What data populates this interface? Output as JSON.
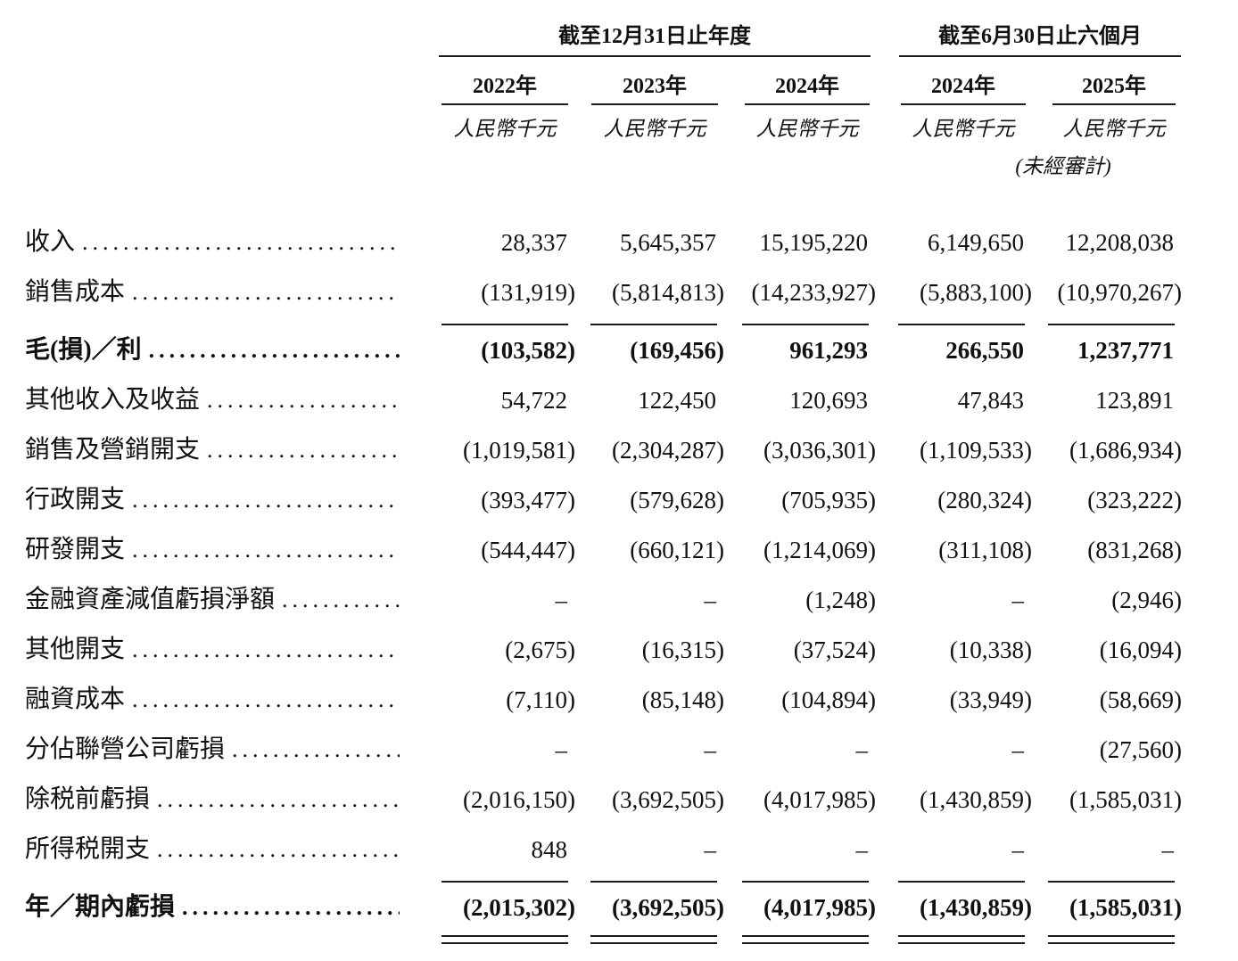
{
  "colors": {
    "text": "#111111",
    "rule": "#1a1a1a",
    "background": "#ffffff"
  },
  "table": {
    "period_groups": [
      {
        "title": "截至12月31日止年度",
        "col_start": 0,
        "col_count": 3
      },
      {
        "title": "截至6月30日止六個月",
        "col_start": 3,
        "col_count": 2
      }
    ],
    "columns": [
      {
        "year": "2022年",
        "unit": "人民幣千元"
      },
      {
        "year": "2023年",
        "unit": "人民幣千元"
      },
      {
        "year": "2024年",
        "unit": "人民幣千元"
      },
      {
        "year": "2024年",
        "unit": "人民幣千元"
      },
      {
        "year": "2025年",
        "unit": "人民幣千元"
      }
    ],
    "unaudited_note": "(未經審計)",
    "rows": [
      {
        "label": "收入",
        "values": [
          "28,337",
          "5,645,357",
          "15,195,220",
          "6,149,650",
          "12,208,038"
        ],
        "bold": false,
        "rule": "none"
      },
      {
        "label": "銷售成本",
        "values": [
          "(131,919)",
          "(5,814,813)",
          "(14,233,927)",
          "(5,883,100)",
          "(10,970,267)"
        ],
        "bold": false,
        "rule": "single"
      },
      {
        "label": "毛(損)／利",
        "values": [
          "(103,582)",
          "(169,456)",
          "961,293",
          "266,550",
          "1,237,771"
        ],
        "bold": true,
        "rule": "none"
      },
      {
        "label": "其他收入及收益",
        "values": [
          "54,722",
          "122,450",
          "120,693",
          "47,843",
          "123,891"
        ],
        "bold": false,
        "rule": "none"
      },
      {
        "label": "銷售及營銷開支",
        "values": [
          "(1,019,581)",
          "(2,304,287)",
          "(3,036,301)",
          "(1,109,533)",
          "(1,686,934)"
        ],
        "bold": false,
        "rule": "none"
      },
      {
        "label": "行政開支",
        "values": [
          "(393,477)",
          "(579,628)",
          "(705,935)",
          "(280,324)",
          "(323,222)"
        ],
        "bold": false,
        "rule": "none"
      },
      {
        "label": "研發開支",
        "values": [
          "(544,447)",
          "(660,121)",
          "(1,214,069)",
          "(311,108)",
          "(831,268)"
        ],
        "bold": false,
        "rule": "none"
      },
      {
        "label": "金融資產減值虧損淨額",
        "values": [
          "–",
          "–",
          "(1,248)",
          "–",
          "(2,946)"
        ],
        "bold": false,
        "rule": "none"
      },
      {
        "label": "其他開支",
        "values": [
          "(2,675)",
          "(16,315)",
          "(37,524)",
          "(10,338)",
          "(16,094)"
        ],
        "bold": false,
        "rule": "none"
      },
      {
        "label": "融資成本",
        "values": [
          "(7,110)",
          "(85,148)",
          "(104,894)",
          "(33,949)",
          "(58,669)"
        ],
        "bold": false,
        "rule": "none"
      },
      {
        "label": "分佔聯營公司虧損",
        "values": [
          "–",
          "–",
          "–",
          "–",
          "(27,560)"
        ],
        "bold": false,
        "rule": "none"
      },
      {
        "label": "除税前虧損",
        "values": [
          "(2,016,150)",
          "(3,692,505)",
          "(4,017,985)",
          "(1,430,859)",
          "(1,585,031)"
        ],
        "bold": false,
        "rule": "none"
      },
      {
        "label": "所得税開支",
        "values": [
          "848",
          "–",
          "–",
          "–",
          "–"
        ],
        "bold": false,
        "rule": "single"
      },
      {
        "label": "年／期內虧損",
        "values": [
          "(2,015,302)",
          "(3,692,505)",
          "(4,017,985)",
          "(1,430,859)",
          "(1,585,031)"
        ],
        "bold": true,
        "rule": "double"
      }
    ]
  }
}
